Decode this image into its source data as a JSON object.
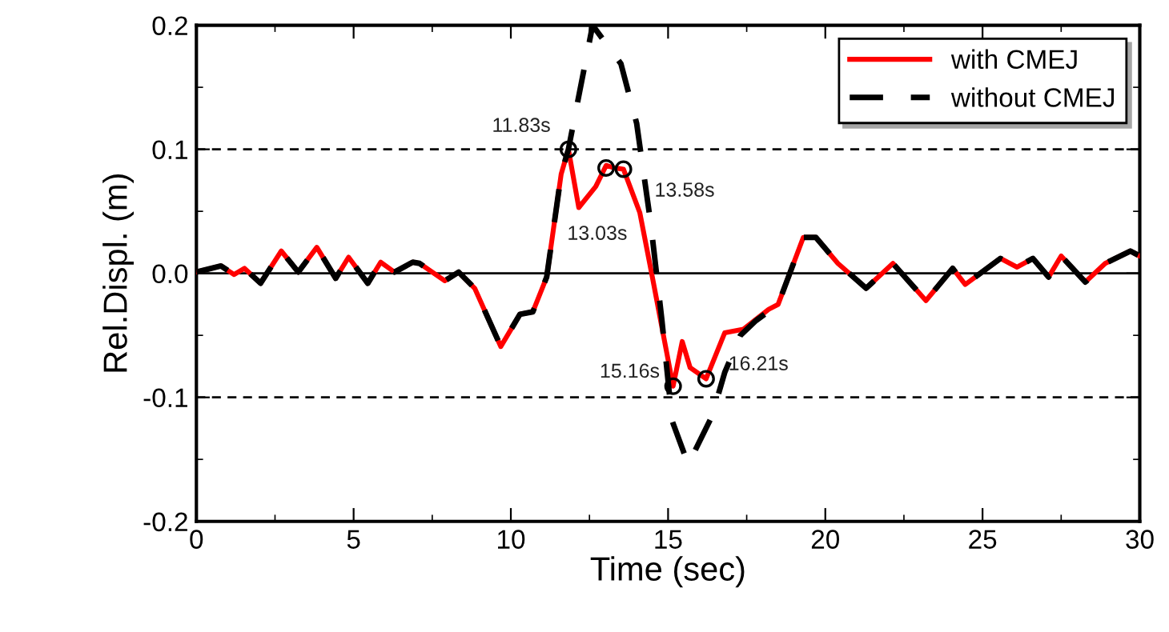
{
  "chart_data": {
    "type": "line",
    "xlabel": "Time (sec)",
    "ylabel": "Rel.Displ. (m)",
    "xlim": [
      0,
      30
    ],
    "ylim": [
      -0.2,
      0.2
    ],
    "xticks": [
      0,
      5,
      10,
      15,
      20,
      25,
      30
    ],
    "yticks": [
      {
        "value": -0.2,
        "label": "-0.2"
      },
      {
        "value": -0.1,
        "label": "-0.1"
      },
      {
        "value": 0,
        "label": "0.0"
      },
      {
        "value": 0.1,
        "label": "0.1"
      },
      {
        "value": 0.2,
        "label": "0.2"
      }
    ],
    "grid": false,
    "legend": "top right",
    "series": [
      {
        "name": "with CMEJ",
        "color": "#ff0000",
        "line_style": "solid",
        "x": [
          0,
          0.78,
          1.2,
          1.53,
          2.04,
          2.7,
          3.24,
          3.83,
          4.43,
          4.84,
          5.45,
          5.86,
          6.3,
          6.88,
          7.1,
          7.9,
          8.34,
          8.85,
          9.68,
          10.29,
          10.7,
          11.14,
          11.6,
          11.83,
          12.16,
          12.7,
          13.03,
          13.3,
          13.58,
          14.1,
          14.5,
          15.16,
          15.45,
          15.7,
          16.21,
          16.8,
          17.4,
          18.2,
          18.5,
          19.3,
          19.7,
          20.4,
          21.3,
          22.15,
          23.2,
          24.05,
          24.45,
          25.57,
          26.1,
          26.6,
          27.1,
          27.5,
          28.27,
          28.9,
          29.7,
          30
        ],
        "values": [
          0.001,
          0.006,
          -0.001,
          0.004,
          -0.008,
          0.018,
          0.001,
          0.021,
          -0.004,
          0.013,
          -0.008,
          0.009,
          0.001,
          0.009,
          0.008,
          -0.006,
          0.001,
          -0.012,
          -0.059,
          -0.033,
          -0.031,
          -0.003,
          0.08,
          0.1,
          0.053,
          0.07,
          0.087,
          0.085,
          0.084,
          0.049,
          -0.003,
          -0.091,
          -0.055,
          -0.076,
          -0.085,
          -0.048,
          -0.045,
          -0.029,
          -0.025,
          0.029,
          0.029,
          0.008,
          -0.012,
          0.008,
          -0.022,
          0.004,
          -0.009,
          0.012,
          0.005,
          0.012,
          -0.003,
          0.014,
          -0.007,
          0.008,
          0.018,
          0.014
        ]
      },
      {
        "name": "without CMEJ",
        "color": "#000000",
        "line_style": "dashed",
        "x": [
          0,
          0.78,
          1.2,
          1.53,
          2.04,
          2.7,
          3.24,
          3.83,
          4.43,
          4.84,
          5.45,
          5.86,
          6.3,
          6.88,
          7.1,
          7.9,
          8.34,
          8.85,
          9.68,
          10.29,
          10.7,
          11.14,
          11.6,
          11.83,
          12.6,
          13.5,
          14.0,
          14.45,
          14.8,
          15.13,
          15.64,
          16.4,
          16.8,
          17.3,
          17.8,
          18.5,
          19.3,
          19.7,
          20.4,
          21.3,
          22.15,
          23.2,
          24.05,
          24.45,
          25.57,
          26.1,
          26.6,
          27.1,
          27.5,
          28.27,
          28.9,
          29.7,
          30
        ],
        "values": [
          0.001,
          0.006,
          -0.001,
          0.004,
          -0.008,
          0.018,
          0.001,
          0.021,
          -0.004,
          0.013,
          -0.008,
          0.009,
          0.001,
          0.009,
          0.008,
          -0.006,
          0.001,
          -0.012,
          -0.059,
          -0.033,
          -0.031,
          -0.003,
          0.08,
          0.1,
          0.2,
          0.169,
          0.121,
          0.04,
          -0.037,
          -0.119,
          -0.154,
          -0.115,
          -0.08,
          -0.05,
          -0.038,
          -0.025,
          0.029,
          0.029,
          0.008,
          -0.012,
          0.008,
          -0.022,
          0.004,
          -0.009,
          0.012,
          0.005,
          0.012,
          -0.003,
          0.014,
          -0.007,
          0.008,
          0.018,
          0.014
        ]
      },
      {
        "type": "scatter",
        "color": "#000000",
        "marker": "circle",
        "x": [
          11.83,
          13.03,
          13.58,
          15.16,
          16.21
        ],
        "values": [
          0.1,
          0.085,
          0.084,
          -0.091,
          -0.085
        ]
      }
    ],
    "ref_lines": [
      {
        "axis": "y",
        "value": 0.1,
        "line_style": "dashed",
        "color": "#000000"
      },
      {
        "axis": "y",
        "value": -0.1,
        "line_style": "dashed",
        "color": "#000000"
      },
      {
        "axis": "y",
        "value": 0,
        "line_style": "solid",
        "color": "#000000"
      }
    ],
    "annotations": [
      {
        "text": "11.83s",
        "x": 11.83,
        "y": 0.1
      },
      {
        "text": "13.03s",
        "x": 13.03,
        "y": 0.085
      },
      {
        "text": "13.58s",
        "x": 13.58,
        "y": 0.084
      },
      {
        "text": "15.16s",
        "x": 15.16,
        "y": -0.091
      },
      {
        "text": "16.21s",
        "x": 16.21,
        "y": -0.085
      }
    ]
  }
}
